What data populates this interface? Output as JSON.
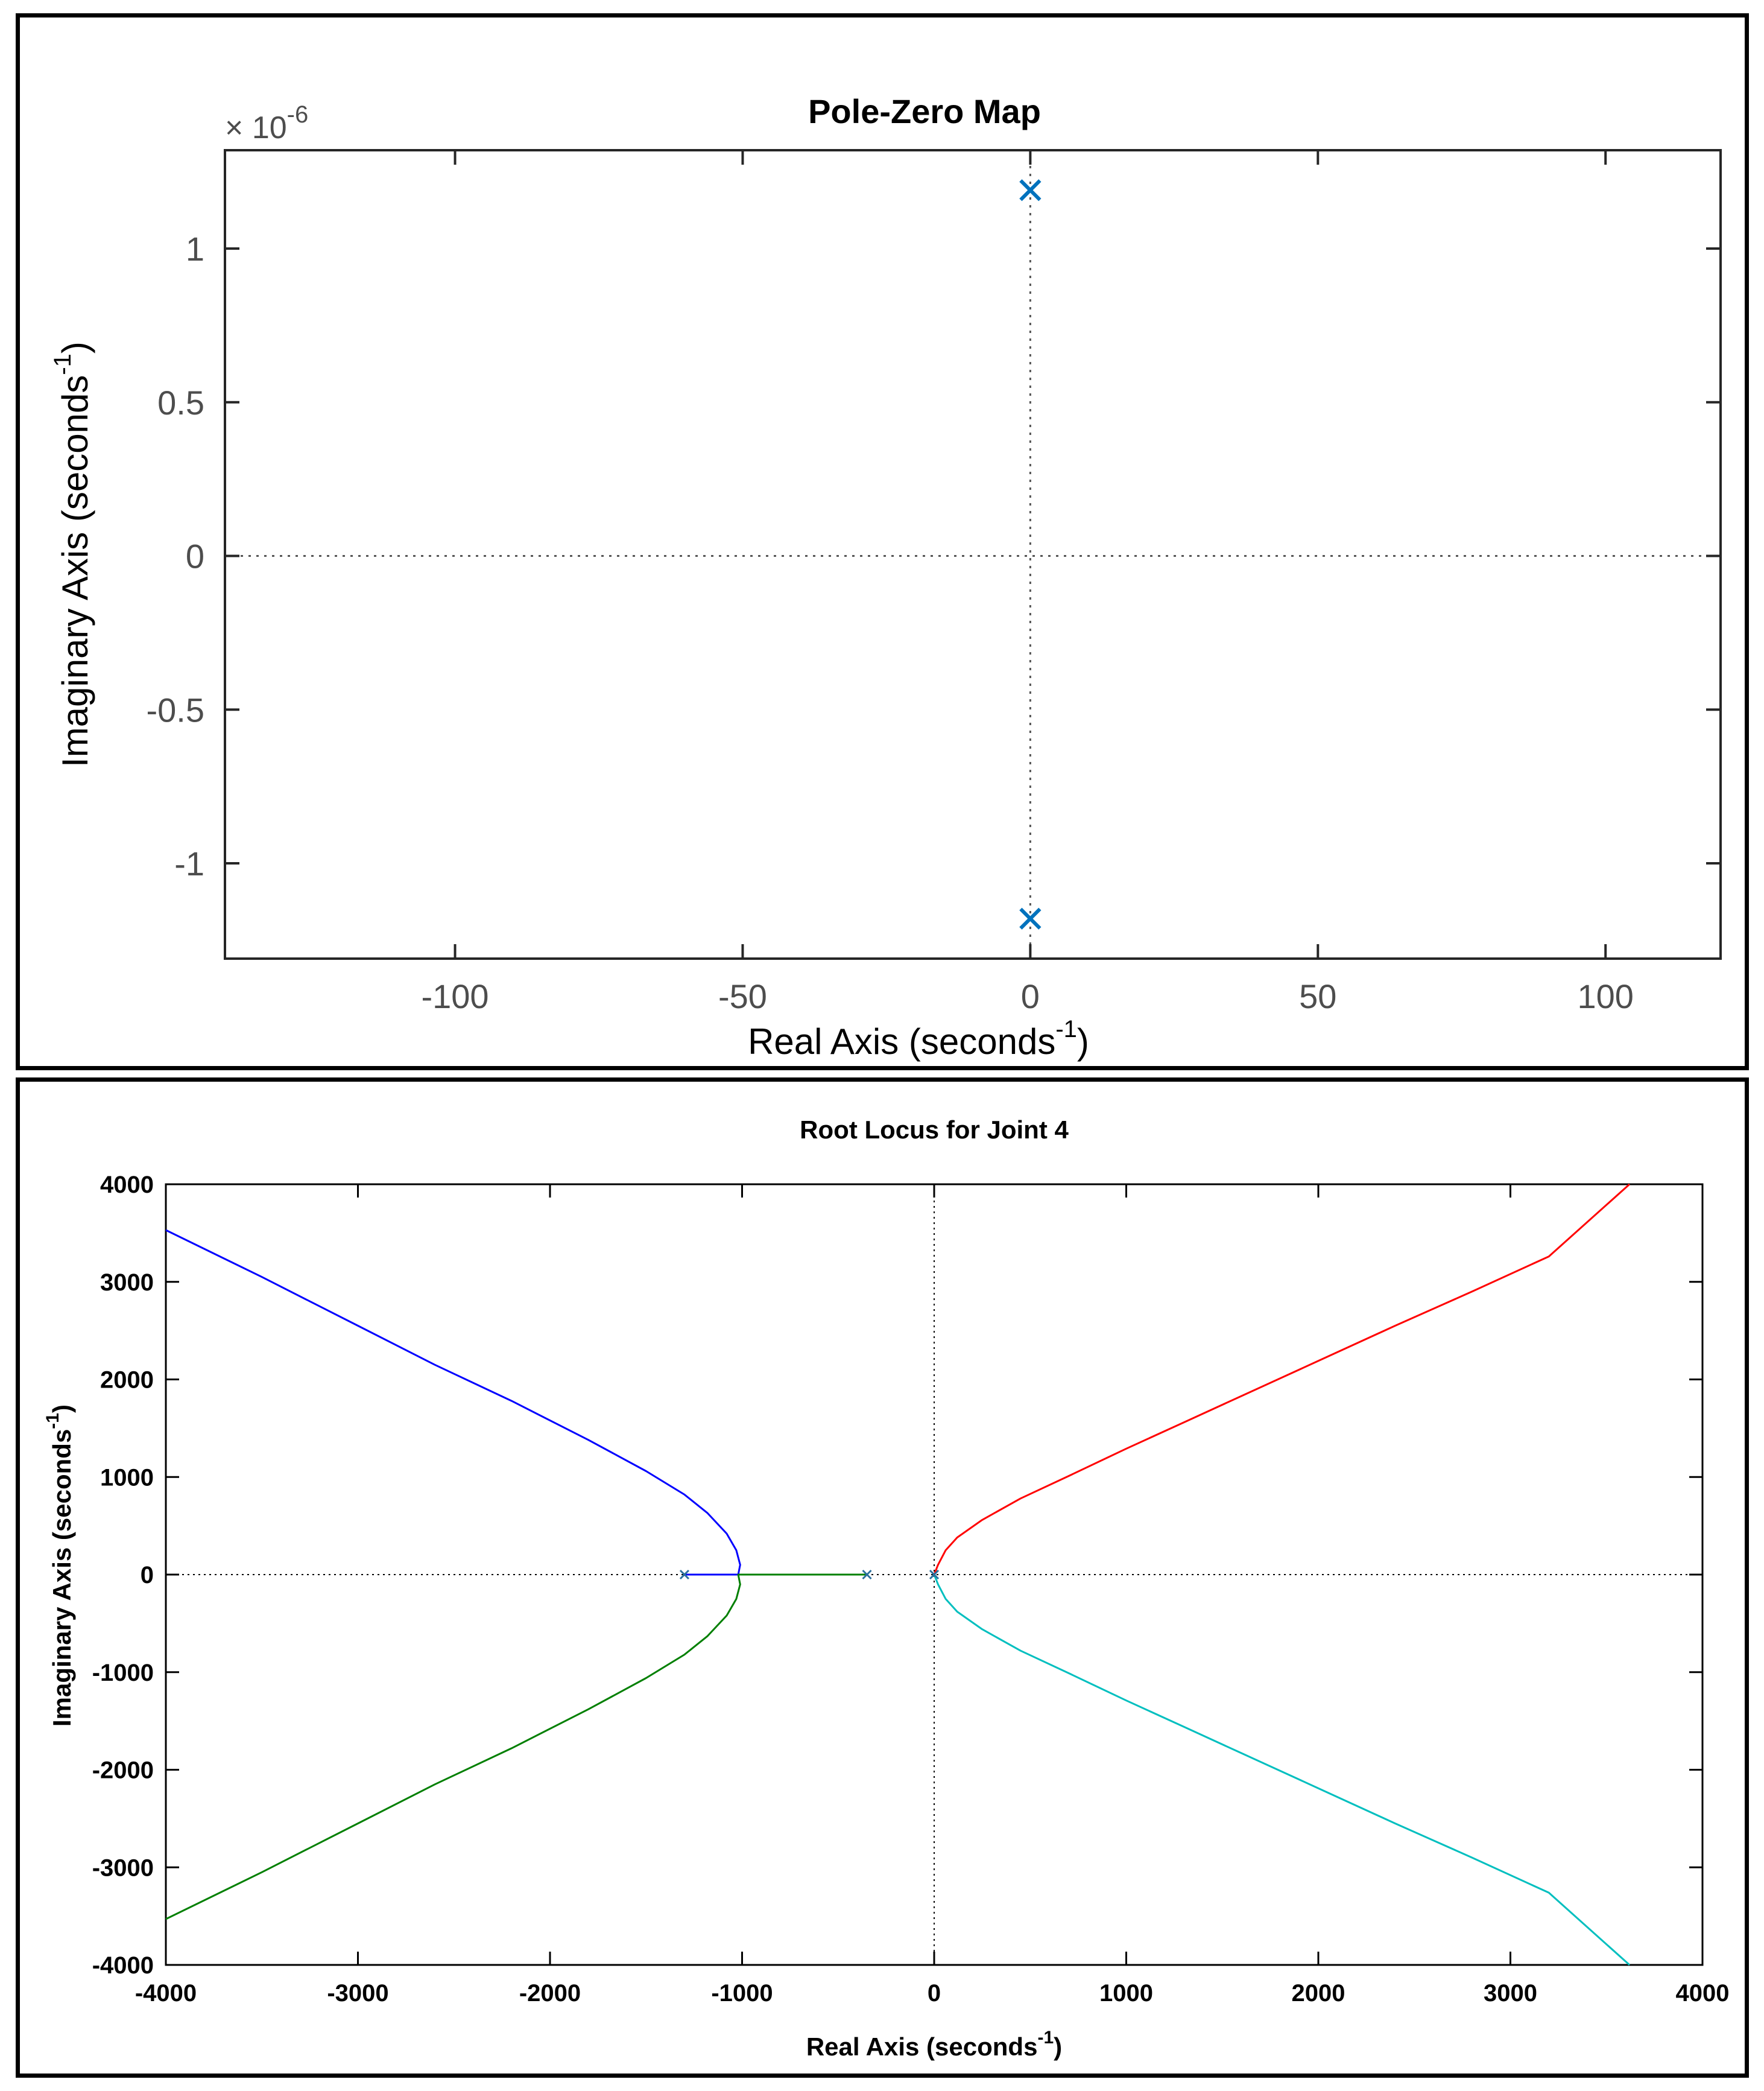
{
  "chart_data": [
    {
      "type": "scatter",
      "title": "Pole-Zero Map",
      "xlabel": "Real Axis (seconds",
      "xlabel_sup": "-1",
      "xlabel_end": ")",
      "ylabel": "Imaginary Axis (seconds",
      "ylabel_sup": "-1",
      "ylabel_end": ")",
      "y_exponent_label": "× 10",
      "y_exponent_sup": "-6",
      "xlim": [
        -140,
        120
      ],
      "ylim": [
        -1.31,
        1.32
      ],
      "xticks": [
        -100,
        -50,
        0,
        50,
        100
      ],
      "xtick_labels": [
        "-100",
        "-50",
        "0",
        "50",
        "100"
      ],
      "yticks": [
        -1,
        -0.5,
        0,
        0.5,
        1
      ],
      "ytick_labels": [
        "-1",
        "-0.5",
        "0",
        "0.5",
        "1"
      ],
      "grid": false,
      "marker_color": "#0072bd",
      "series": [
        {
          "marker": "x",
          "x": [
            0,
            0
          ],
          "y": [
            1.19,
            -1.18
          ]
        }
      ]
    },
    {
      "type": "line",
      "title": "Root Locus for Joint 4",
      "xlabel": "Real Axis (seconds",
      "xlabel_sup": "-1",
      "xlabel_end": ")",
      "ylabel": "Imaginary Axis (seconds",
      "ylabel_sup": "-1",
      "ylabel_end": ")",
      "xlim": [
        -4000,
        4000
      ],
      "ylim": [
        -4000,
        4000
      ],
      "xticks": [
        -4000,
        -3000,
        -2000,
        -1000,
        0,
        1000,
        2000,
        3000,
        4000
      ],
      "xtick_labels": [
        "-4000",
        "-3000",
        "-2000",
        "-1000",
        "0",
        "1000",
        "2000",
        "3000",
        "4000"
      ],
      "yticks": [
        -4000,
        -3000,
        -2000,
        -1000,
        0,
        1000,
        2000,
        3000,
        4000
      ],
      "ytick_labels": [
        "-4000",
        "-3000",
        "-2000",
        "-1000",
        "0",
        "1000",
        "2000",
        "3000",
        "4000"
      ],
      "grid": false,
      "poles": {
        "x": [
          -1300,
          -350,
          0
        ],
        "y": [
          0,
          0,
          0
        ],
        "color": "#2a6f9e"
      },
      "series": [
        {
          "color": "#0000ff",
          "x": [
            -1300,
            -1020,
            -1010,
            -1030,
            -1080,
            -1180,
            -1300,
            -1500,
            -1800,
            -2200,
            -2600,
            -3000,
            -3200,
            -3500,
            -4000
          ],
          "y": [
            0,
            0,
            100,
            250,
            420,
            630,
            820,
            1060,
            1380,
            1780,
            2150,
            2550,
            2750,
            3050,
            3530
          ]
        },
        {
          "color": "#007f00",
          "x": [
            -350,
            -1020,
            -1010,
            -1030,
            -1080,
            -1180,
            -1300,
            -1500,
            -1800,
            -2200,
            -2600,
            -3000,
            -3200,
            -3500,
            -4000
          ],
          "y": [
            0,
            0,
            -100,
            -250,
            -420,
            -630,
            -820,
            -1060,
            -1380,
            -1780,
            -2150,
            -2550,
            -2750,
            -3050,
            -3530
          ]
        },
        {
          "color": "#ff0000",
          "x": [
            0,
            20,
            60,
            120,
            250,
            450,
            700,
            1000,
            1300,
            1600,
            2000,
            2400,
            2800,
            3200,
            3620
          ],
          "y": [
            0,
            100,
            250,
            380,
            560,
            780,
            1010,
            1290,
            1560,
            1830,
            2190,
            2550,
            2900,
            3260,
            4000
          ]
        },
        {
          "color": "#00bfbf",
          "x": [
            0,
            20,
            60,
            120,
            250,
            450,
            700,
            1000,
            1300,
            1600,
            2000,
            2400,
            2800,
            3200,
            3620
          ],
          "y": [
            0,
            -100,
            -250,
            -380,
            -560,
            -780,
            -1010,
            -1290,
            -1560,
            -1830,
            -2190,
            -2550,
            -2900,
            -3260,
            -4000
          ]
        }
      ]
    }
  ]
}
